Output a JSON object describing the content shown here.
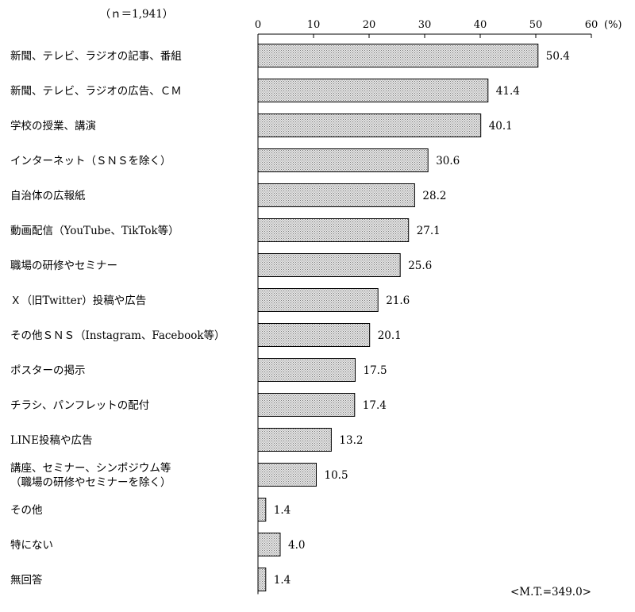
{
  "sample_size_label": "（ｎ＝1,941）",
  "unit_label": "(%)",
  "total_note": "<M.T.=349.0>",
  "colors": {
    "bar_fill": "#d4d4d4",
    "bar_stroke": "#000000",
    "axis": "#000000"
  },
  "chart_data": {
    "type": "bar",
    "orientation": "horizontal",
    "categories": [
      [
        "新聞、テレビ、ラジオの記事、番組"
      ],
      [
        "新聞、テレビ、ラジオの広告、ＣＭ"
      ],
      [
        "学校の授業、講演"
      ],
      [
        "インターネット（ＳＮＳを除く）"
      ],
      [
        "自治体の広報紙"
      ],
      [
        "動画配信（YouTube、TikTok等）"
      ],
      [
        "職場の研修やセミナー"
      ],
      [
        "Ｘ（旧Twitter）投稿や広告"
      ],
      [
        "その他ＳＮＳ（Instagram、Facebook等）"
      ],
      [
        "ポスターの掲示"
      ],
      [
        "チラシ、パンフレットの配付"
      ],
      [
        "LINE投稿や広告"
      ],
      [
        "講座、セミナー、シンポジウム等",
        "（職場の研修やセミナーを除く）"
      ],
      [
        "その他"
      ],
      [
        "特にない"
      ],
      [
        "無回答"
      ]
    ],
    "values": [
      50.4,
      41.4,
      40.1,
      30.6,
      28.2,
      27.1,
      25.6,
      21.6,
      20.1,
      17.5,
      17.4,
      13.2,
      10.5,
      1.4,
      4.0,
      1.4
    ],
    "value_labels": [
      "50.4",
      "41.4",
      "40.1",
      "30.6",
      "28.2",
      "27.1",
      "25.6",
      "21.6",
      "20.1",
      "17.5",
      "17.4",
      "13.2",
      "10.5",
      "1.4",
      "4.0",
      "1.4"
    ],
    "xlim": [
      0,
      60
    ],
    "xticks": [
      0,
      10,
      20,
      30,
      40,
      50,
      60
    ],
    "xtick_labels": [
      "0",
      "10",
      "20",
      "30",
      "40",
      "50",
      "60"
    ],
    "axis_position": "top",
    "grid": false,
    "legend": "none"
  }
}
